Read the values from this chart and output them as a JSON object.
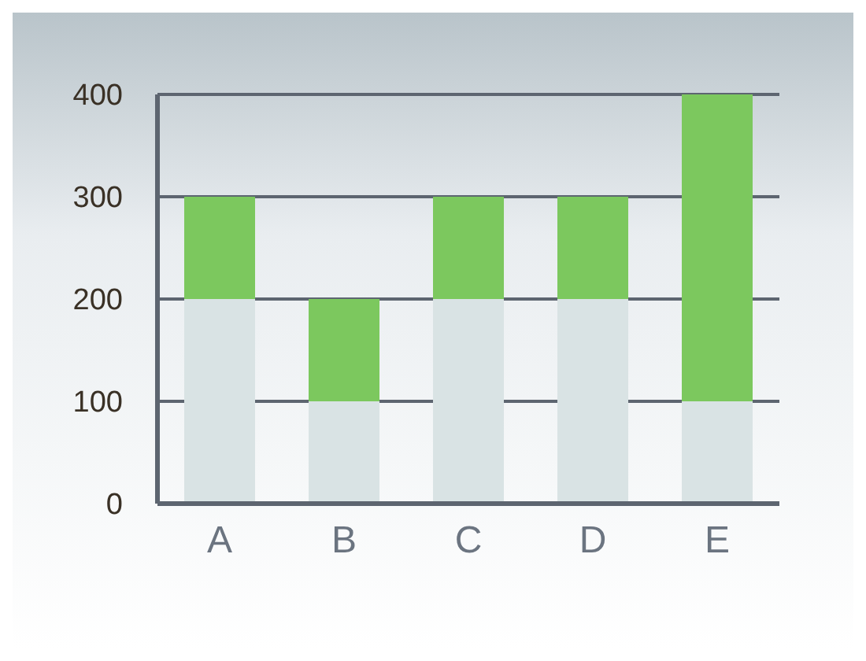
{
  "chart_data": {
    "type": "bar",
    "stacked": true,
    "categories": [
      "A",
      "B",
      "C",
      "D",
      "E"
    ],
    "series": [
      {
        "color": "#d9e3e4",
        "values": [
          200,
          100,
          200,
          200,
          100
        ]
      },
      {
        "color": "#7cc85e",
        "values": [
          100,
          100,
          100,
          100,
          300
        ]
      }
    ],
    "ylim": [
      0,
      400
    ],
    "yticks": [
      0,
      100,
      200,
      300,
      400
    ],
    "grid": "y"
  }
}
